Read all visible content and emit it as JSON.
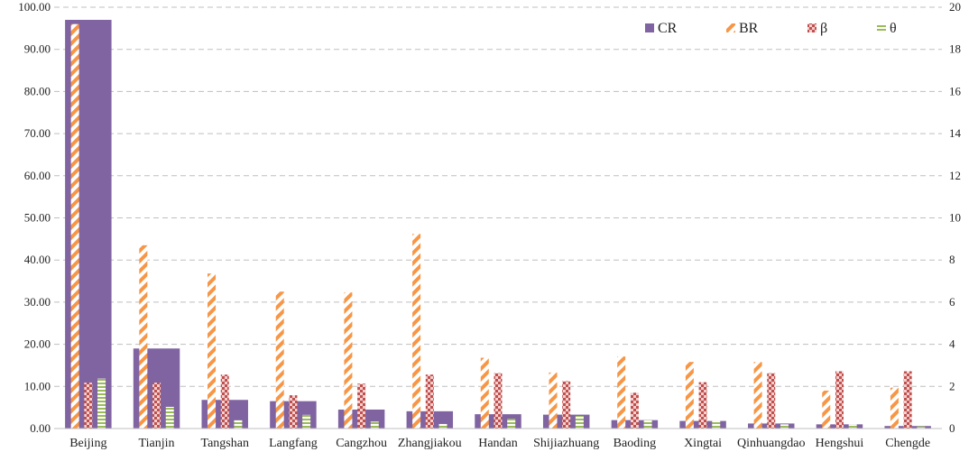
{
  "chart_data": {
    "type": "bar",
    "categories": [
      "Beijing",
      "Tianjin",
      "Tangshan",
      "Langfang",
      "Cangzhou",
      "Zhangjiakou",
      "Handan",
      "Shijiazhuang",
      "Baoding",
      "Xingtai",
      "Qinhuangdao",
      "Hengshui",
      "Chengde"
    ],
    "y_left": {
      "min": 0,
      "max": 100,
      "ticks": [
        "0.00",
        "10.00",
        "20.00",
        "30.00",
        "40.00",
        "50.00",
        "60.00",
        "70.00",
        "80.00",
        "90.00",
        "100.00"
      ]
    },
    "y_right": {
      "min": 0,
      "max": 20,
      "ticks": [
        "0",
        "2",
        "4",
        "6",
        "8",
        "10",
        "12",
        "14",
        "16",
        "18",
        "20"
      ]
    },
    "grid": true,
    "legend_position": "top-right",
    "series": [
      {
        "name": "CR",
        "axis": "left",
        "color": "#8064a2",
        "pattern": "solid",
        "values": [
          97.0,
          19.0,
          6.8,
          6.5,
          4.5,
          4.1,
          3.4,
          3.3,
          2.0,
          1.8,
          1.2,
          1.0,
          0.6
        ]
      },
      {
        "name": "BR",
        "axis": "left",
        "color": "#f79646",
        "pattern": "diagonal",
        "values": [
          96.0,
          43.5,
          36.8,
          32.5,
          32.3,
          46.2,
          16.8,
          13.3,
          17.1,
          15.8,
          15.8,
          9.0,
          9.7
        ]
      },
      {
        "name": "β",
        "axis": "right",
        "color": "#c0504d",
        "pattern": "checker",
        "values": [
          2.18,
          2.18,
          2.56,
          1.58,
          2.13,
          2.56,
          2.63,
          2.25,
          1.7,
          2.2,
          2.63,
          2.72,
          2.72
        ]
      },
      {
        "name": "θ",
        "axis": "right",
        "color": "#9bbb59",
        "pattern": "horizontal",
        "values": [
          2.37,
          1.03,
          0.4,
          0.65,
          0.33,
          0.22,
          0.47,
          0.6,
          0.4,
          0.36,
          0.2,
          0.2,
          0.1
        ]
      }
    ]
  }
}
